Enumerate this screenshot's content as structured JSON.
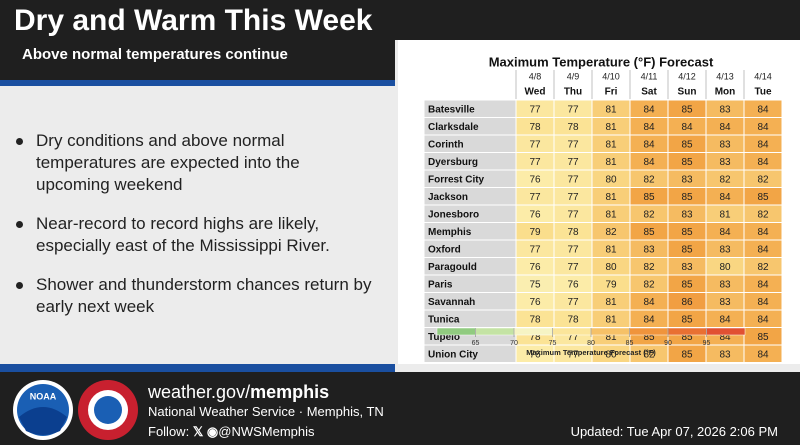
{
  "header": {
    "title": "Dry and Warm This Week",
    "subtitle": "Above normal temperatures continue"
  },
  "bullets": [
    "Dry conditions and above normal temperatures are expected into the upcoming weekend",
    "Near-record to record highs are likely, especially east of the Mississippi River.",
    "Shower and thunderstorm chances return by early next week"
  ],
  "table": {
    "title": "Maximum Temperature (°F) Forecast",
    "dates": [
      "4/8",
      "4/9",
      "4/10",
      "4/11",
      "4/12",
      "4/13",
      "4/14"
    ],
    "days": [
      "Wed",
      "Thu",
      "Fri",
      "Sat",
      "Sun",
      "Mon",
      "Tue"
    ],
    "rows": [
      {
        "city": "Batesville",
        "values": [
          77,
          77,
          81,
          84,
          85,
          83,
          84
        ]
      },
      {
        "city": "Clarksdale",
        "values": [
          78,
          78,
          81,
          84,
          84,
          84,
          84
        ]
      },
      {
        "city": "Corinth",
        "values": [
          77,
          77,
          81,
          84,
          85,
          83,
          84
        ]
      },
      {
        "city": "Dyersburg",
        "values": [
          77,
          77,
          81,
          84,
          85,
          83,
          84
        ]
      },
      {
        "city": "Forrest City",
        "values": [
          76,
          77,
          80,
          82,
          83,
          82,
          82
        ]
      },
      {
        "city": "Jackson",
        "values": [
          77,
          77,
          81,
          85,
          85,
          84,
          85
        ]
      },
      {
        "city": "Jonesboro",
        "values": [
          76,
          77,
          81,
          82,
          83,
          81,
          82
        ]
      },
      {
        "city": "Memphis",
        "values": [
          79,
          78,
          82,
          85,
          85,
          84,
          84
        ]
      },
      {
        "city": "Oxford",
        "values": [
          77,
          77,
          81,
          83,
          85,
          83,
          84
        ]
      },
      {
        "city": "Paragould",
        "values": [
          76,
          77,
          80,
          82,
          83,
          80,
          82
        ]
      },
      {
        "city": "Paris",
        "values": [
          75,
          76,
          79,
          82,
          85,
          83,
          84
        ]
      },
      {
        "city": "Savannah",
        "values": [
          76,
          77,
          81,
          84,
          86,
          83,
          84
        ]
      },
      {
        "city": "Tunica",
        "values": [
          78,
          78,
          81,
          84,
          85,
          84,
          84
        ]
      },
      {
        "city": "Tupelo",
        "values": [
          78,
          77,
          81,
          85,
          85,
          84,
          85
        ]
      },
      {
        "city": "Union City",
        "values": [
          76,
          77,
          80,
          82,
          85,
          83,
          84
        ]
      }
    ]
  },
  "colorbar": {
    "ticks": [
      65,
      70,
      75,
      80,
      85,
      90,
      95
    ],
    "label": "Maximum Temperature Forecast (°F)"
  },
  "footer": {
    "logo": "NOAA",
    "site_prefix": "weather.gov/",
    "site_office": "memphis",
    "office": "National Weather Service · Memphis, TN",
    "follow": "Follow:",
    "handle": "@NWSMemphis",
    "updated": "Updated: Tue Apr 07, 2026 2:06 PM"
  }
}
